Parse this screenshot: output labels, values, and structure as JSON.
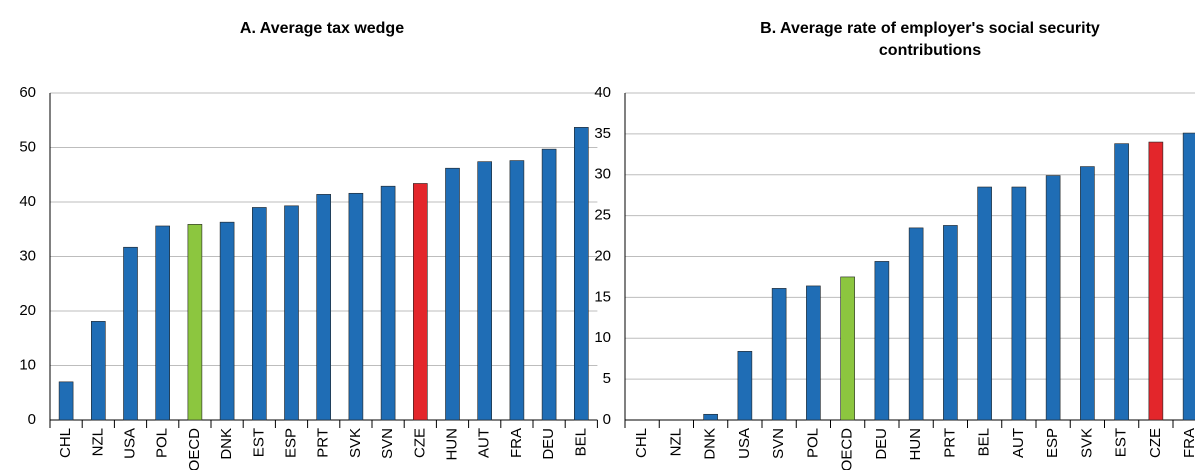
{
  "chart_data": [
    {
      "type": "bar",
      "title": "A. Average tax wedge",
      "categories": [
        "CHL",
        "NZL",
        "USA",
        "POL",
        "OECD",
        "DNK",
        "EST",
        "ESP",
        "PRT",
        "SVK",
        "SVN",
        "CZE",
        "HUN",
        "AUT",
        "FRA",
        "DEU",
        "BEL"
      ],
      "values": [
        7,
        18.1,
        31.7,
        35.6,
        35.9,
        36.3,
        39,
        39.3,
        41.4,
        41.6,
        42.9,
        43.4,
        46.2,
        47.4,
        47.6,
        49.7,
        53.7
      ],
      "colors": [
        "#1f6db5",
        "#1f6db5",
        "#1f6db5",
        "#1f6db5",
        "#8cc63f",
        "#1f6db5",
        "#1f6db5",
        "#1f6db5",
        "#1f6db5",
        "#1f6db5",
        "#1f6db5",
        "#e3262b",
        "#1f6db5",
        "#1f6db5",
        "#1f6db5",
        "#1f6db5",
        "#1f6db5"
      ],
      "ylim": [
        0,
        60
      ],
      "yticks": [
        0,
        10,
        20,
        30,
        40,
        50,
        60
      ],
      "grid": true
    },
    {
      "type": "bar",
      "title": "B. Average rate of employer's social security contributions",
      "categories": [
        "CHL",
        "NZL",
        "DNK",
        "USA",
        "SVN",
        "POL",
        "OECD",
        "DEU",
        "HUN",
        "PRT",
        "BEL",
        "AUT",
        "ESP",
        "SVK",
        "EST",
        "CZE",
        "FRA"
      ],
      "values": [
        0,
        0,
        0.7,
        8.4,
        16.1,
        16.4,
        17.5,
        19.4,
        23.5,
        23.8,
        28.5,
        28.5,
        29.9,
        31,
        33.8,
        34,
        35.1
      ],
      "colors": [
        "#1f6db5",
        "#1f6db5",
        "#1f6db5",
        "#1f6db5",
        "#1f6db5",
        "#1f6db5",
        "#8cc63f",
        "#1f6db5",
        "#1f6db5",
        "#1f6db5",
        "#1f6db5",
        "#1f6db5",
        "#1f6db5",
        "#1f6db5",
        "#1f6db5",
        "#e3262b",
        "#1f6db5"
      ],
      "ylim": [
        0,
        40
      ],
      "yticks": [
        0,
        5,
        10,
        15,
        20,
        25,
        30,
        35,
        40
      ],
      "grid": true
    }
  ]
}
